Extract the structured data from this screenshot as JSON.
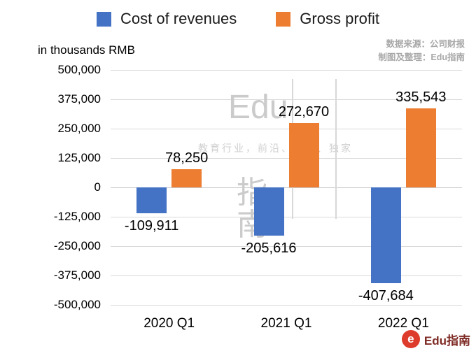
{
  "legend": [
    {
      "label": "Cost of revenues",
      "color": "#4472C4"
    },
    {
      "label": "Gross profit",
      "color": "#ED7D31"
    }
  ],
  "subtitle": "in thousands RMB",
  "source_note": {
    "line1": "数据来源：公司财报",
    "line2": "制图及整理：Edu指南"
  },
  "watermark": {
    "brand_top": "Edu",
    "char1": "指",
    "char2": "南",
    "slogan": "教育行业，前沿、深度、独家"
  },
  "footer_logo": {
    "icon_letter": "e",
    "label": "Edu指南"
  },
  "chart_data": {
    "type": "bar",
    "categories": [
      "2020 Q1",
      "2021 Q1",
      "2022 Q1"
    ],
    "series": [
      {
        "name": "Cost of revenues",
        "color": "#4472C4",
        "values": [
          -109911,
          -205616,
          -407684
        ],
        "labels": [
          "-109,911",
          "-205,616",
          "-407,684"
        ]
      },
      {
        "name": "Gross profit",
        "color": "#ED7D31",
        "values": [
          78250,
          272670,
          335543
        ],
        "labels": [
          "78,250",
          "272,670",
          "335,543"
        ]
      }
    ],
    "ylabel": "in thousands RMB",
    "ylim": [
      -500000,
      500000
    ],
    "ytick_step": 125000,
    "yticks": [
      "500,000",
      "375,000",
      "250,000",
      "125,000",
      "0",
      "-125,000",
      "-250,000",
      "-375,000",
      "-500,000"
    ],
    "grid": true,
    "legend_position": "top"
  }
}
